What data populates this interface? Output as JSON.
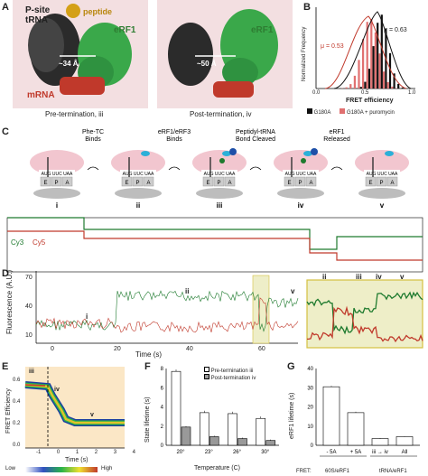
{
  "panels": {
    "A": "A",
    "B": "B",
    "C": "C",
    "D": "D",
    "E": "E",
    "F": "F",
    "G": "G"
  },
  "panelA": {
    "left_label1": "P-site",
    "left_label2": "tRNA",
    "peptide": "peptide",
    "erf1_left": "eRF1",
    "dist_left": "~34 Å",
    "mrna": "mRNA",
    "caption_left": "Pre-termination, iii",
    "erf1_right": "eRF1",
    "dist_right": "~50 Å",
    "caption_right": "Post-termination, iv",
    "colors": {
      "trna": "#333333",
      "erf1": "#3aa84a",
      "mrna": "#c0392b",
      "peptide": "#d4a017",
      "ribo": "#f1d5d8"
    }
  },
  "panelB": {
    "ylabel": "Normalized Frequency",
    "xlabel": "FRET efficiency",
    "mu_red": "μ = 0.53",
    "mu_black": "μ = 0.63",
    "ticks_x": [
      "0.0",
      "0.5",
      "1.0"
    ],
    "legend": [
      {
        "label": "G180A",
        "color": "#111111"
      },
      {
        "label": "G180A + puromycin",
        "color": "#e07070"
      }
    ]
  },
  "panelC": {
    "steps": [
      {
        "label1": "Phe-TC",
        "label2": "Binds"
      },
      {
        "label1": "eRF1/eRF3",
        "label2": "Binds"
      },
      {
        "label1": "Peptidyl-tRNA",
        "label2": "Bond Cleaved"
      },
      {
        "label1": "eRF1",
        "label2": "Released"
      }
    ],
    "states": [
      "i",
      "ii",
      "iii",
      "iv",
      "v"
    ],
    "sites": [
      "E",
      "P",
      "A"
    ],
    "codons": "AUG UUC UAA",
    "cy3": "Cy3",
    "cy5": "Cy5"
  },
  "panelD": {
    "ylabel1": "Fluorescence",
    "ylabel2": "(A.U.)",
    "xlabel": "Time (s)",
    "yticks": [
      "70",
      "40",
      "10"
    ],
    "xticks": [
      "0",
      "20",
      "40",
      "60"
    ],
    "state_labels": [
      "i",
      "ii",
      "v"
    ],
    "inset_labels": [
      "ii",
      "iii",
      "iv",
      "v"
    ]
  },
  "panelE": {
    "ylabel": "FRET Efficiency",
    "xlabel": "Time (s)",
    "yticks": [
      "0.6",
      "0.4",
      "0.2",
      "0.0"
    ],
    "xticks": [
      "-1",
      "0",
      "1",
      "2",
      "3",
      "4"
    ],
    "state_labels": [
      "iii",
      "iv",
      "v"
    ],
    "colorbar_low": "Low",
    "colorbar_high": "High"
  },
  "panelF": {
    "ylabel": "State lifetime (s)",
    "xlabel": "Temperature (C)",
    "yticks": [
      "8",
      "6",
      "4",
      "2",
      "0"
    ],
    "legend": [
      {
        "label": "Pre-termination iii",
        "color": "#ffffff"
      },
      {
        "label": "Post-termination iv",
        "color": "#999999"
      }
    ]
  },
  "panelG": {
    "ylabel": "eRF1 lifetime (s)",
    "yticks": [
      "40",
      "30",
      "20",
      "10",
      "0"
    ],
    "fret_label": "FRET:",
    "group1": "60S/eRF1",
    "group2": "tRNA/eRF1"
  },
  "chart_data": [
    {
      "type": "bar",
      "panel": "F",
      "categories": [
        "20°",
        "23°",
        "26°",
        "30°"
      ],
      "series": [
        {
          "name": "Pre-termination iii",
          "values": [
            7.7,
            3.4,
            3.3,
            2.8
          ],
          "errors": [
            0.2,
            0.2,
            0.2,
            0.2
          ]
        },
        {
          "name": "Post-termination iv",
          "values": [
            1.9,
            0.9,
            0.7,
            0.5
          ],
          "errors": [
            0.1,
            0.1,
            0.1,
            0.1
          ]
        }
      ],
      "xlabel": "Temperature (C)",
      "ylabel": "State lifetime (s)",
      "ylim": [
        0,
        8
      ]
    },
    {
      "type": "bar",
      "panel": "G",
      "categories": [
        "- 5A",
        "+ 5A",
        "iii → iv",
        "All"
      ],
      "values": [
        30.5,
        17,
        3.5,
        4.5
      ],
      "errors": [
        0.5,
        0.5,
        0.3,
        0.3
      ],
      "ylabel": "eRF1 lifetime (s)",
      "ylim": [
        0,
        40
      ]
    },
    {
      "type": "bar",
      "panel": "B",
      "xlabel": "FRET efficiency",
      "ylabel": "Normalized Frequency",
      "xlim": [
        0,
        1
      ],
      "series": [
        {
          "name": "G180A",
          "mean": 0.63
        },
        {
          "name": "G180A + puromycin",
          "mean": 0.53
        }
      ]
    }
  ]
}
